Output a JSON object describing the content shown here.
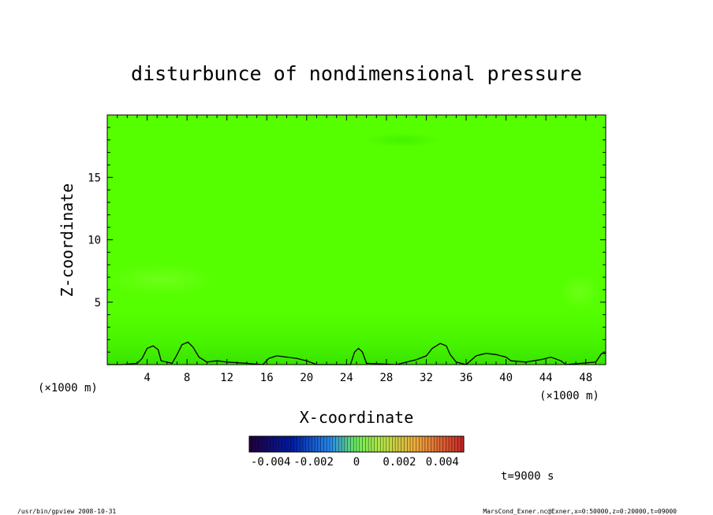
{
  "chart_data": {
    "type": "heatmap",
    "title": "disturbunce of nondimensional pressure",
    "xlabel": "X-coordinate",
    "ylabel": "Z-coordinate",
    "x_unit": "(×1000 m)",
    "y_unit": "(×1000 m)",
    "xlim": [
      0,
      50
    ],
    "ylim": [
      0,
      20
    ],
    "x_ticks": [
      4,
      8,
      12,
      16,
      20,
      24,
      28,
      32,
      36,
      40,
      44,
      48
    ],
    "y_ticks": [
      5,
      10,
      15
    ],
    "field_color": "#55ff00",
    "colorbar": {
      "ticks": [
        "-0.004",
        "-0.002",
        "0",
        "0.002",
        "0.004"
      ],
      "range": [
        -0.005,
        0.005
      ]
    },
    "time_label": "t=9000 s",
    "terrain_x": [
      0,
      1.5,
      3,
      3.5,
      4,
      4.6,
      5.1,
      5.4,
      6.5,
      7,
      7.5,
      8.1,
      8.6,
      9.2,
      10,
      11,
      12,
      14,
      15.6,
      16.2,
      17,
      18,
      19,
      20,
      21,
      24.4,
      24.8,
      25.2,
      25.6,
      26,
      29,
      31,
      32,
      32.6,
      33.4,
      34,
      34.4,
      35,
      36,
      37,
      38,
      39,
      40,
      40.5,
      42,
      43.5,
      44.5,
      45.5,
      46,
      49,
      49.6,
      50
    ],
    "terrain_z": [
      0,
      0,
      0.1,
      0.5,
      1.3,
      1.5,
      1.2,
      0.3,
      0.1,
      0.8,
      1.6,
      1.8,
      1.4,
      0.6,
      0.2,
      0.3,
      0.2,
      0.1,
      0,
      0.5,
      0.7,
      0.6,
      0.5,
      0.3,
      0,
      0,
      1,
      1.3,
      1,
      0.1,
      0,
      0.4,
      0.7,
      1.3,
      1.7,
      1.5,
      0.8,
      0.2,
      0,
      0.7,
      0.9,
      0.8,
      0.6,
      0.3,
      0.2,
      0.4,
      0.6,
      0.3,
      0,
      0.2,
      0.9,
      0.9
    ]
  },
  "footer": {
    "left": "/usr/bin/gpview   2008-10-31",
    "right": "MarsCond_Exner.nc@Exner,x=0:50000,z=0:20000,t=09000"
  }
}
